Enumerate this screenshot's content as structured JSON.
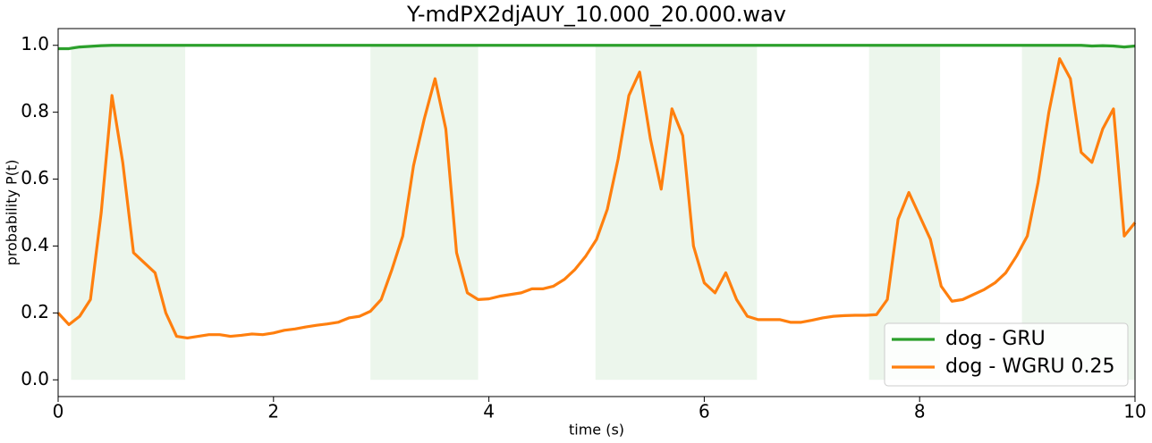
{
  "chart_data": {
    "type": "line",
    "title": "Y-mdPX2djAUY_10.000_20.000.wav",
    "xlabel": "time (s)",
    "ylabel": "probability P(t)",
    "xlim": [
      0,
      10
    ],
    "ylim": [
      -0.05,
      1.05
    ],
    "xticks": [
      0,
      2,
      4,
      6,
      8,
      10
    ],
    "yticks": [
      {
        "value": 0,
        "label": "0.0"
      },
      0.2,
      0.4,
      0.6,
      0.8,
      {
        "value": 1,
        "label": "1.0"
      }
    ],
    "legend": "lower right",
    "shaded_color": "#2ca02c",
    "shaded_y": [
      0,
      1
    ],
    "shaded_regions": [
      [
        0.12,
        1.18
      ],
      [
        2.9,
        3.9
      ],
      [
        4.99,
        6.49
      ],
      [
        7.53,
        8.19
      ],
      [
        8.95,
        10
      ]
    ],
    "x": [
      0,
      0.1,
      0.2,
      0.3,
      0.4,
      0.5,
      0.6,
      0.7,
      0.8,
      0.9,
      1,
      1.1,
      1.2,
      1.3,
      1.4,
      1.5,
      1.6,
      1.7,
      1.8,
      1.9,
      2,
      2.1,
      2.2,
      2.3,
      2.4,
      2.5,
      2.6,
      2.7,
      2.8,
      2.9,
      3,
      3.1,
      3.2,
      3.3,
      3.4,
      3.5,
      3.6,
      3.7,
      3.8,
      3.9,
      4,
      4.1,
      4.2,
      4.3,
      4.4,
      4.5,
      4.6,
      4.7,
      4.8,
      4.9,
      5,
      5.1,
      5.2,
      5.3,
      5.4,
      5.5,
      5.6,
      5.7,
      5.8,
      5.9,
      6,
      6.1,
      6.2,
      6.3,
      6.4,
      6.5,
      6.6,
      6.7,
      6.8,
      6.9,
      7,
      7.1,
      7.2,
      7.3,
      7.4,
      7.5,
      7.6,
      7.7,
      7.8,
      7.9,
      8,
      8.1,
      8.2,
      8.3,
      8.4,
      8.5,
      8.6,
      8.7,
      8.8,
      8.9,
      9,
      9.1,
      9.2,
      9.3,
      9.4,
      9.5,
      9.6,
      9.7,
      9.8,
      9.9,
      10
    ],
    "series": [
      {
        "name": "dog - GRU",
        "color": "#2ca02c",
        "values": [
          0.99,
          0.99,
          0.995,
          0.997,
          0.999,
          1,
          1,
          1,
          1,
          1,
          1,
          1,
          1,
          1,
          1,
          1,
          1,
          1,
          1,
          1,
          1,
          1,
          1,
          1,
          1,
          1,
          1,
          1,
          1,
          1,
          1,
          1,
          1,
          1,
          1,
          1,
          1,
          1,
          1,
          1,
          1,
          1,
          1,
          1,
          1,
          1,
          1,
          1,
          1,
          1,
          1,
          1,
          1,
          1,
          1,
          1,
          1,
          1,
          1,
          1,
          1,
          1,
          1,
          1,
          1,
          1,
          1,
          1,
          1,
          1,
          1,
          1,
          1,
          1,
          1,
          1,
          1,
          1,
          1,
          1,
          1,
          1,
          1,
          1,
          1,
          1,
          1,
          1,
          1,
          1,
          1,
          1,
          1,
          1,
          1,
          1,
          0.998,
          0.999,
          0.998,
          0.995,
          0.998
        ]
      },
      {
        "name": "dog - WGRU 0.25",
        "color": "#ff7f0e",
        "values": [
          0.2,
          0.165,
          0.19,
          0.24,
          0.5,
          0.85,
          0.65,
          0.38,
          0.35,
          0.32,
          0.2,
          0.13,
          0.125,
          0.13,
          0.135,
          0.135,
          0.13,
          0.133,
          0.137,
          0.135,
          0.14,
          0.148,
          0.152,
          0.158,
          0.163,
          0.167,
          0.172,
          0.185,
          0.19,
          0.205,
          0.24,
          0.33,
          0.43,
          0.64,
          0.78,
          0.9,
          0.75,
          0.38,
          0.26,
          0.24,
          0.242,
          0.25,
          0.255,
          0.26,
          0.272,
          0.272,
          0.28,
          0.3,
          0.33,
          0.37,
          0.42,
          0.51,
          0.66,
          0.85,
          0.92,
          0.72,
          0.57,
          0.81,
          0.73,
          0.4,
          0.29,
          0.26,
          0.32,
          0.24,
          0.19,
          0.18,
          0.18,
          0.18,
          0.172,
          0.172,
          0.178,
          0.185,
          0.19,
          0.192,
          0.193,
          0.193,
          0.195,
          0.24,
          0.48,
          0.56,
          0.49,
          0.42,
          0.28,
          0.235,
          0.24,
          0.255,
          0.27,
          0.29,
          0.32,
          0.37,
          0.43,
          0.59,
          0.8,
          0.96,
          0.9,
          0.68,
          0.65,
          0.75,
          0.81,
          0.43,
          0.47
        ]
      }
    ]
  }
}
